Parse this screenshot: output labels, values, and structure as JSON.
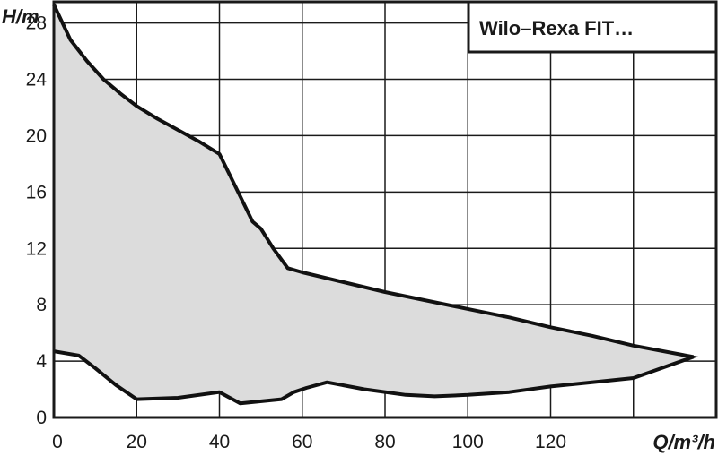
{
  "chart_data": {
    "type": "area",
    "title": "Wilo–Rexa FIT…",
    "xlabel": "Q/m³/h",
    "ylabel": "H/m",
    "xlim": [
      0,
      160
    ],
    "ylim": [
      0,
      29.5
    ],
    "x_ticks": [
      0,
      20,
      40,
      60,
      80,
      100,
      120
    ],
    "x_tick_labels": [
      "0",
      "20",
      "40",
      "60",
      "80",
      "100",
      "120"
    ],
    "y_ticks": [
      0,
      4,
      8,
      12,
      16,
      20,
      24,
      28
    ],
    "y_tick_labels": [
      "0",
      "4",
      "8",
      "12",
      "16",
      "20",
      "24",
      "28"
    ],
    "x_grid": [
      0,
      20,
      40,
      60,
      80,
      100,
      120,
      140,
      160
    ],
    "y_grid": [
      0,
      4,
      8,
      12,
      16,
      20,
      24,
      28
    ],
    "grid": true,
    "fill_color": "#dcdcdc",
    "line_color": "#111111",
    "upper_curve": [
      [
        0,
        29.3
      ],
      [
        4,
        26.8
      ],
      [
        8,
        25.3
      ],
      [
        12,
        24.0
      ],
      [
        16,
        23.0
      ],
      [
        20,
        22.1
      ],
      [
        25,
        21.2
      ],
      [
        30,
        20.4
      ],
      [
        35,
        19.6
      ],
      [
        40,
        18.7
      ],
      [
        44,
        16.3
      ],
      [
        48,
        13.9
      ],
      [
        50,
        13.4
      ],
      [
        53,
        12.0
      ],
      [
        56.5,
        10.6
      ],
      [
        60,
        10.3
      ],
      [
        70,
        9.6
      ],
      [
        80,
        8.9
      ],
      [
        90,
        8.3
      ],
      [
        100,
        7.7
      ],
      [
        110,
        7.1
      ],
      [
        120,
        6.4
      ],
      [
        130,
        5.8
      ],
      [
        140,
        5.1
      ],
      [
        154.5,
        4.3
      ]
    ],
    "lower_curve": [
      [
        0,
        4.7
      ],
      [
        6,
        4.4
      ],
      [
        10,
        3.5
      ],
      [
        15,
        2.3
      ],
      [
        20,
        1.3
      ],
      [
        30,
        1.4
      ],
      [
        40,
        1.8
      ],
      [
        45,
        1.0
      ],
      [
        55,
        1.3
      ],
      [
        58,
        1.8
      ],
      [
        61,
        2.1
      ],
      [
        66,
        2.5
      ],
      [
        75,
        2.0
      ],
      [
        85,
        1.6
      ],
      [
        92,
        1.5
      ],
      [
        100,
        1.6
      ],
      [
        110,
        1.8
      ],
      [
        120,
        2.2
      ],
      [
        130,
        2.5
      ],
      [
        140,
        2.8
      ],
      [
        154.5,
        4.3
      ]
    ]
  }
}
